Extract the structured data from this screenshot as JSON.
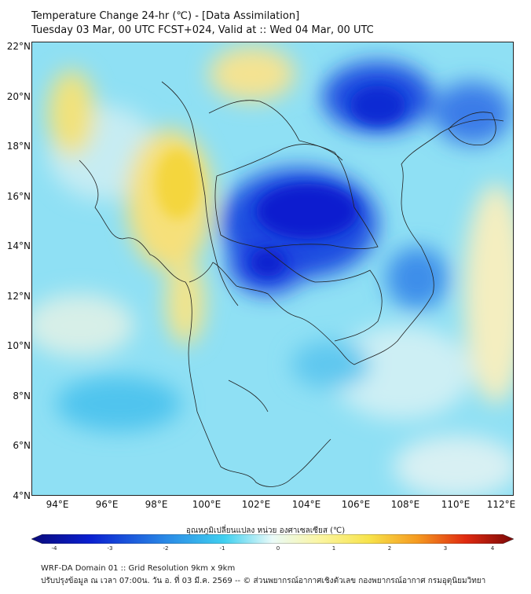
{
  "header": {
    "title": "Temperature Change 24-hr (℃) - [Data Assimilation]",
    "subtitle": "Tuesday 03 Mar, 00 UTC FCST+024, Valid at :: Wed 04 Mar, 00 UTC"
  },
  "map": {
    "lat_labels": [
      "22°N",
      "20°N",
      "18°N",
      "16°N",
      "14°N",
      "12°N",
      "10°N",
      "8°N",
      "6°N",
      "4°N"
    ],
    "lon_labels": [
      "94°E",
      "96°E",
      "98°E",
      "100°E",
      "102°E",
      "104°E",
      "106°E",
      "108°E",
      "110°E",
      "112°E"
    ],
    "extent": {
      "lon_min": 93,
      "lon_max": 112.4,
      "lat_min": 4,
      "lat_max": 22.2
    }
  },
  "colorbar": {
    "title": "อุณหภูมิเปลี่ยนแปลง หน่วย องศาเซลเซียส (℃)",
    "ticks": [
      "-4",
      "-3",
      "-2",
      "-1",
      "0",
      "1",
      "2",
      "3",
      "4"
    ],
    "min": -4,
    "max": 4
  },
  "footer": {
    "line1": "WRF-DA Domain 01 :: Grid Resolution 9km x 9km",
    "line2": "ปรับปรุงข้อมูล ณ เวลา 07:00น. วัน อ. ที่ 03 มี.ค. 2569 -- © ส่วนพยากรณ์อากาศเชิงตัวเลข กองพยากรณ์อากาศ กรมอุตุนิยมวิทยา"
  }
}
